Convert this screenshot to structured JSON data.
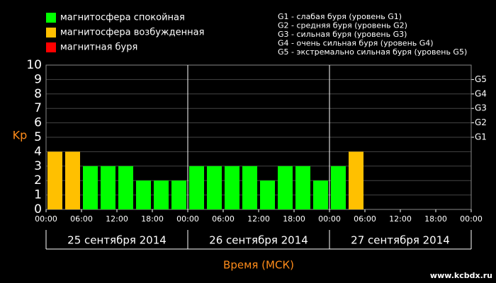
{
  "chart_data": {
    "type": "bar",
    "legend": [
      {
        "name": "магнитосфера спокойная",
        "color": "#00ff00"
      },
      {
        "name": "магнитосфера возбужденная",
        "color": "#ffc000"
      },
      {
        "name": "магнитная буря",
        "color": "#ff0000"
      }
    ],
    "storm_levels": [
      "G1 - слабая буря (уровень G1)",
      "G2 - средняя буря (уровень G2)",
      "G3 - сильная буря (уровень G3)",
      "G4 - очень сильная буря (уровень G4)",
      "G5 - экстремально сильная буря (уровень G5)"
    ],
    "y_label": "Kp",
    "x_label": "Время (МСК)",
    "watermark": "www.kcbdx.ru",
    "x": [
      0,
      3,
      6,
      9,
      12,
      15,
      18,
      21,
      24,
      27,
      30,
      33,
      36,
      39,
      42,
      45,
      48,
      51,
      54,
      57,
      60,
      63,
      66,
      69
    ],
    "values": [
      4,
      4,
      3,
      3,
      3,
      2,
      2,
      2,
      3,
      3,
      3,
      3,
      2,
      3,
      3,
      2,
      3,
      4,
      null,
      null,
      null,
      null,
      null,
      null
    ],
    "bar_colors": [
      "#ffc000",
      "#ffc000",
      "#00ff00",
      "#00ff00",
      "#00ff00",
      "#00ff00",
      "#00ff00",
      "#00ff00",
      "#00ff00",
      "#00ff00",
      "#00ff00",
      "#00ff00",
      "#00ff00",
      "#00ff00",
      "#00ff00",
      "#00ff00",
      "#00ff00",
      "#ffc000",
      null,
      null,
      null,
      null,
      null,
      null
    ],
    "bar_width": 3,
    "xlim": [
      0,
      72
    ],
    "xticks": [
      {
        "value": 0,
        "label": "00:00"
      },
      {
        "value": 6,
        "label": "06:00"
      },
      {
        "value": 12,
        "label": "12:00"
      },
      {
        "value": 18,
        "label": "18:00"
      },
      {
        "value": 24,
        "label": "00:00"
      },
      {
        "value": 30,
        "label": "06:00"
      },
      {
        "value": 36,
        "label": "12:00"
      },
      {
        "value": 42,
        "label": "18:00"
      },
      {
        "value": 48,
        "label": "00:00"
      },
      {
        "value": 54,
        "label": "06:00"
      },
      {
        "value": 60,
        "label": "12:00"
      },
      {
        "value": 66,
        "label": "18:00"
      },
      {
        "value": 72,
        "label": "00:00"
      }
    ],
    "days": [
      {
        "label": "25 сентября 2014",
        "start": 0,
        "end": 24
      },
      {
        "label": "26 сентября 2014",
        "start": 24,
        "end": 48
      },
      {
        "label": "27 сентября 2014",
        "start": 48,
        "end": 72
      }
    ],
    "ylim": [
      0,
      10
    ],
    "yticks": [
      0,
      1,
      2,
      3,
      4,
      5,
      6,
      7,
      8,
      9,
      10
    ],
    "y2ticks": [
      {
        "value": 5,
        "label": "G1"
      },
      {
        "value": 6,
        "label": "G2"
      },
      {
        "value": 7,
        "label": "G3"
      },
      {
        "value": 8,
        "label": "G4"
      },
      {
        "value": 9,
        "label": "G5"
      }
    ],
    "grid": true
  }
}
